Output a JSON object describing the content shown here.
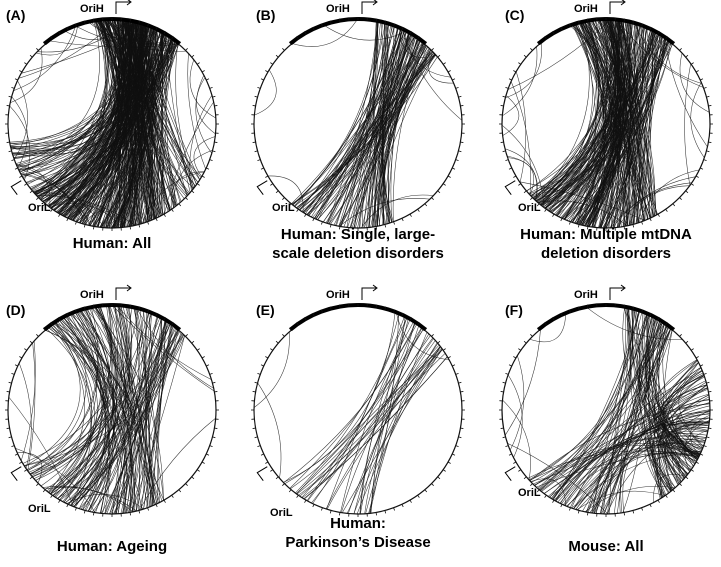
{
  "panels": [
    {
      "letter": "(A)",
      "caption_lines": [
        "Human: All"
      ],
      "density": 420,
      "style": "human_all"
    },
    {
      "letter": "(B)",
      "caption_lines": [
        "Human: Single, large-",
        "scale deletion disorders"
      ],
      "density": 120,
      "style": "human_single"
    },
    {
      "letter": "(C)",
      "caption_lines": [
        "Human: Multiple mtDNA",
        "deletion disorders"
      ],
      "density": 260,
      "style": "human_multiple"
    },
    {
      "letter": "(D)",
      "caption_lines": [
        "Human: Ageing"
      ],
      "density": 150,
      "style": "human_ageing"
    },
    {
      "letter": "(E)",
      "caption_lines": [
        "Human:",
        "Parkinson’s Disease"
      ],
      "density": 40,
      "style": "human_pd"
    },
    {
      "letter": "(F)",
      "caption_lines": [
        "Mouse: All"
      ],
      "density": 170,
      "style": "mouse_all"
    }
  ],
  "origin_labels": {
    "heavy": "OriH",
    "light": "OriL"
  }
}
